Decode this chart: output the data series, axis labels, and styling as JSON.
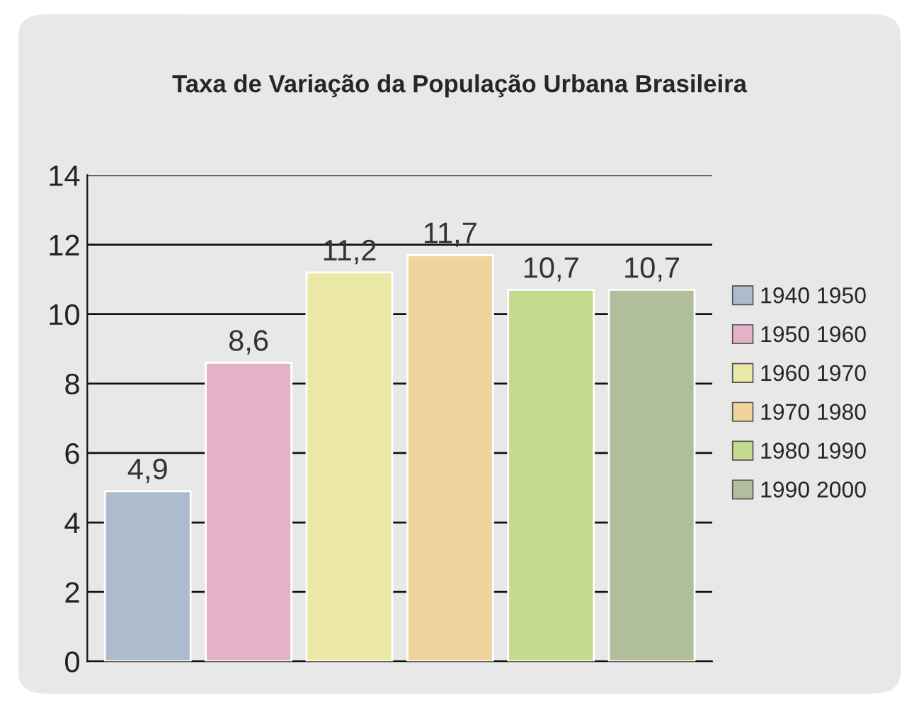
{
  "chart_data": {
    "type": "bar",
    "title": "Taxa de Variação da População Urbana Brasileira",
    "categories": [
      null,
      null,
      null,
      null,
      null,
      null
    ],
    "series": [
      {
        "name": "1940 1950",
        "color": "#adbccc",
        "values": [
          4.9,
          null,
          null,
          null,
          null,
          null
        ],
        "value_labels": [
          "4,9",
          null,
          null,
          null,
          null,
          null
        ]
      },
      {
        "name": "1950 1960",
        "color": "#e4b2c8",
        "values": [
          null,
          8.6,
          null,
          null,
          null,
          null
        ],
        "value_labels": [
          null,
          "8,6",
          null,
          null,
          null,
          null
        ]
      },
      {
        "name": "1960 1970",
        "color": "#ece9a8",
        "values": [
          null,
          null,
          11.2,
          null,
          null,
          null
        ],
        "value_labels": [
          null,
          null,
          "11,2",
          null,
          null,
          null
        ]
      },
      {
        "name": "1970 1980",
        "color": "#f0d49e",
        "values": [
          null,
          null,
          null,
          11.7,
          null,
          null
        ],
        "value_labels": [
          null,
          null,
          null,
          "11,7",
          null,
          null
        ]
      },
      {
        "name": "1980 1990",
        "color": "#c4da8e",
        "values": [
          null,
          null,
          null,
          null,
          10.7,
          null
        ],
        "value_labels": [
          null,
          null,
          null,
          null,
          "10,7",
          null
        ]
      },
      {
        "name": "1990 2000",
        "color": "#b1be9c",
        "values": [
          null,
          null,
          null,
          null,
          null,
          10.7
        ],
        "value_labels": [
          null,
          null,
          null,
          null,
          null,
          "10,7"
        ]
      }
    ],
    "ylim": [
      0,
      14
    ],
    "yticks": [
      0,
      2,
      4,
      6,
      8,
      10,
      12,
      14
    ],
    "grid": "y",
    "legend": "right",
    "tick_labels": "y"
  }
}
